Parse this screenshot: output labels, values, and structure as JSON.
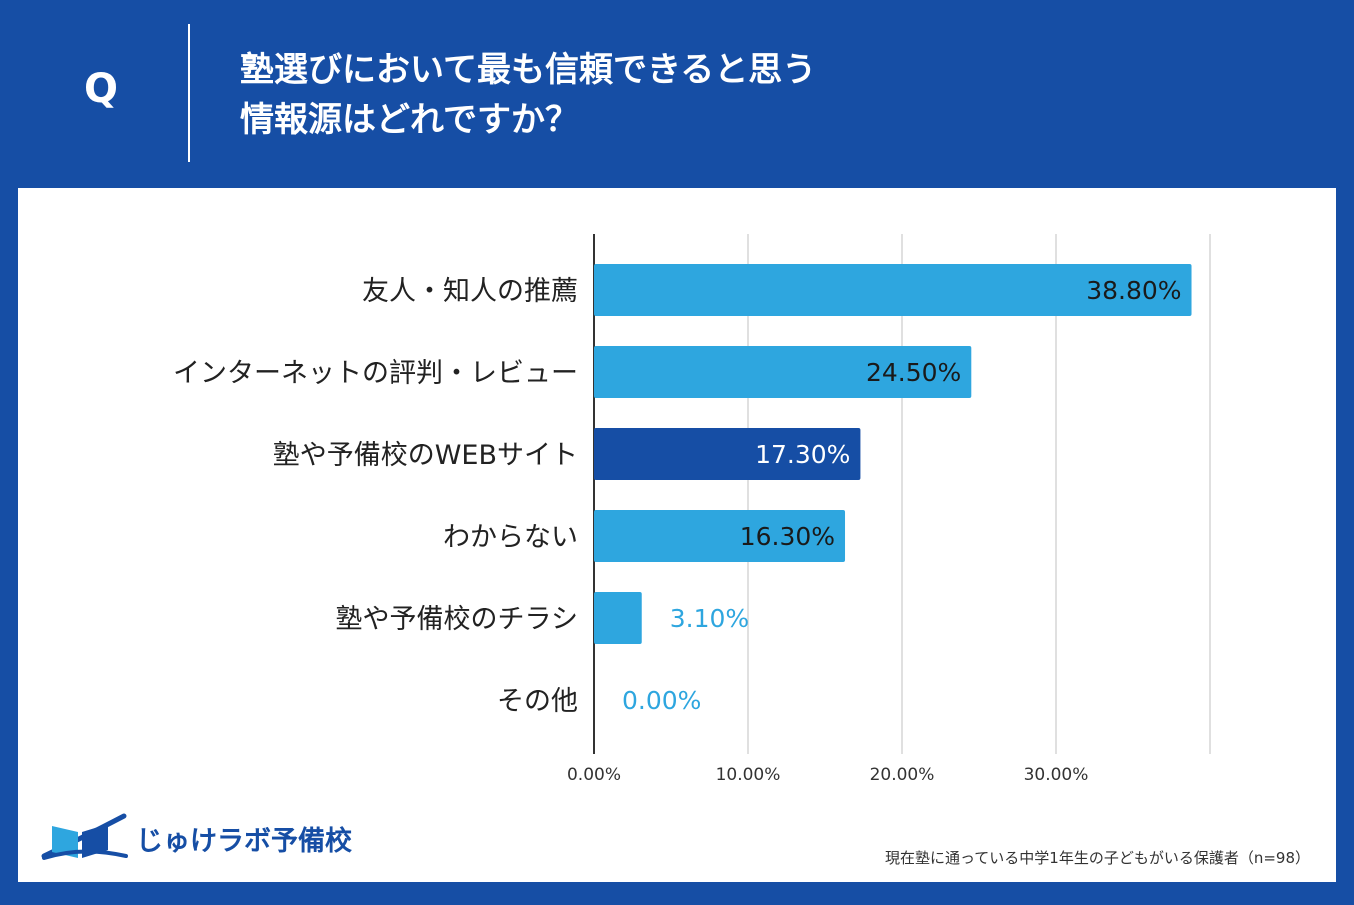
{
  "question": {
    "marker": "Q",
    "line1": "塾選びにおいて最も信頼できると思う",
    "line2": "情報源はどれですか？"
  },
  "chart_data": {
    "type": "bar",
    "orientation": "horizontal",
    "title": "塾選びにおいて最も信頼できると思う情報源はどれですか？",
    "categories": [
      "友人・知人の推薦",
      "インターネットの評判・レビュー",
      "塾や予備校のWEBサイト",
      "わからない",
      "塾や予備校のチラシ",
      "その他"
    ],
    "values": [
      38.8,
      24.5,
      17.3,
      16.3,
      3.1,
      0.0
    ],
    "value_labels": [
      "38.80%",
      "24.50%",
      "17.30%",
      "16.30%",
      "3.10%",
      "0.00%"
    ],
    "highlight_index": 2,
    "xlim": [
      0,
      40
    ],
    "xticks": [
      0,
      10,
      20,
      30
    ],
    "xtick_labels": [
      "0.00%",
      "10.00%",
      "20.00%",
      "30.00%"
    ],
    "gridlines": [
      10,
      20,
      30,
      40
    ],
    "colors": {
      "bar": "#2ea6df",
      "highlight": "#164ea5",
      "label_inside_dark": "#1a1a1a",
      "label_inside_light": "#ffffff",
      "label_outside": "#2ea6df",
      "grid": "#cccccc",
      "axis": "#333333"
    }
  },
  "logo": {
    "text": "じゅけラボ予備校",
    "icon": "book-swoosh-icon"
  },
  "note": "現在塾に通っている中学1年生の子どもがいる保護者（n=98）"
}
